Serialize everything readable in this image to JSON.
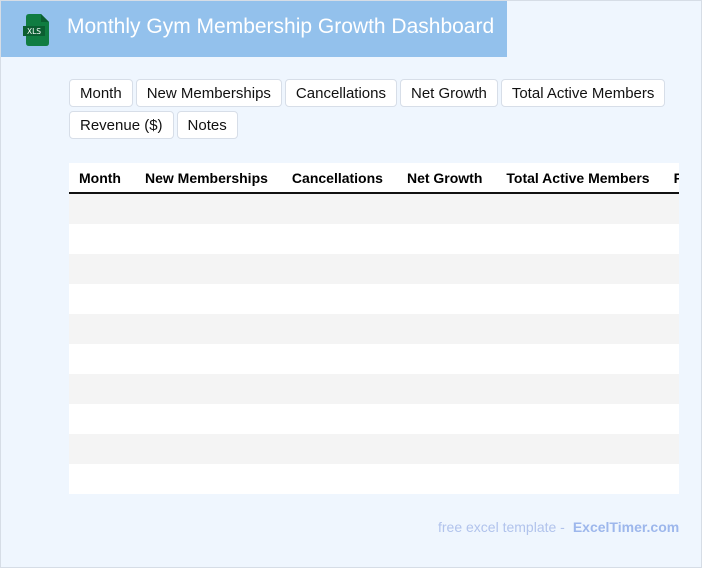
{
  "header": {
    "title": "Monthly Gym Membership Growth Dashboard",
    "logo_text": "XLS",
    "logo_color": "#107c41",
    "bg_color": "#93c1ec"
  },
  "chips": [
    "Month",
    "New Memberships",
    "Cancellations",
    "Net Growth",
    "Total Active Members",
    "Revenue ($)",
    "Notes"
  ],
  "table": {
    "columns": [
      "Month",
      "New Memberships",
      "Cancellations",
      "Net Growth",
      "Total Active Members",
      "Revenue"
    ],
    "rows": [
      [],
      [],
      [],
      [],
      [],
      [],
      [],
      [],
      [],
      []
    ]
  },
  "footer": {
    "prefix": "free excel template -",
    "brand": "ExcelTimer.com"
  }
}
